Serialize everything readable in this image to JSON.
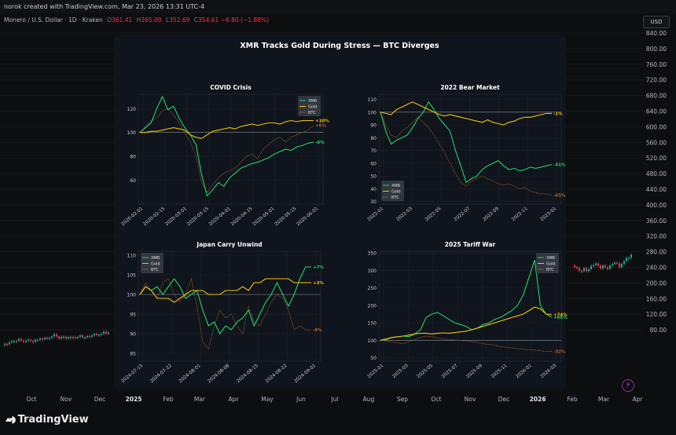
{
  "header": {
    "title": "norok created with TradingView.com, Mar 23, 2026 13:31 UTC-4",
    "symbol": "Monero / U.S. Dollar · 1D · Kraken",
    "ohlc": [
      {
        "label": "O",
        "value": "361.41"
      },
      {
        "label": "H",
        "value": "365.00"
      },
      {
        "label": "L",
        "value": "352.69"
      },
      {
        "label": "C",
        "value": "354.61"
      }
    ],
    "change": "−6.80 (−1.88%)",
    "currency": "USD"
  },
  "colors": {
    "background": "#0d0e10",
    "panel": "#111620",
    "xmr": "#22d36b",
    "gold": "#f5c400",
    "btc": "#b8652a",
    "candle_up": "#26a69a",
    "candle_down": "#f23645"
  },
  "price_axis": {
    "labels": [
      "840.00",
      "800.00",
      "760.00",
      "720.00",
      "680.00",
      "640.00",
      "600.00",
      "560.00",
      "520.00",
      "480.00",
      "440.00",
      "400.00",
      "360.00",
      "320.00",
      "280.00",
      "240.00",
      "200.00",
      "160.00",
      "120.00",
      "80.00"
    ]
  },
  "time_axis": {
    "labels": [
      "Oct",
      "Nov",
      "Dec",
      "2025",
      "Feb",
      "Mar",
      "Apr",
      "May",
      "Jun",
      "Jul",
      "Aug",
      "Sep",
      "Oct",
      "Nov",
      "Dec",
      "2026",
      "Feb",
      "Mar",
      "Apr"
    ]
  },
  "figure": {
    "title": "XMR Tracks Gold During Stress — BTC Diverges"
  },
  "chart_data": [
    {
      "type": "line",
      "title": "COVID Crisis",
      "x_ticks": [
        "2020-02-01",
        "2020-02-15",
        "2020-03-01",
        "2020-03-15",
        "2020-04-01",
        "2020-04-15",
        "2020-05-01",
        "2020-05-15",
        "2020-06-01"
      ],
      "y_ticks": [
        "60",
        "80",
        "100",
        "120"
      ],
      "ylim": [
        40,
        132
      ],
      "reference_line": 100,
      "legend": [
        "XMR",
        "Gold",
        "BTC"
      ],
      "legend_position": "top-right",
      "series": [
        {
          "name": "XMR",
          "values": [
            100,
            104,
            108,
            120,
            130,
            119,
            122,
            112,
            104,
            98,
            90,
            65,
            47,
            52,
            58,
            55,
            62,
            66,
            70,
            72,
            74,
            75,
            77,
            79,
            82,
            84,
            86,
            85,
            88,
            89,
            91,
            92
          ],
          "end_label": "-8%"
        },
        {
          "name": "Gold",
          "values": [
            100,
            100,
            101,
            101,
            102,
            103,
            104,
            103,
            102,
            98,
            96,
            95,
            98,
            101,
            102,
            103,
            104,
            103,
            105,
            106,
            107,
            106,
            107,
            108,
            108,
            107,
            109,
            110,
            109,
            110,
            110,
            110
          ],
          "end_label": "+10%"
        },
        {
          "name": "BTC",
          "values": [
            100,
            105,
            110,
            112,
            118,
            120,
            115,
            108,
            100,
            92,
            80,
            58,
            50,
            56,
            62,
            66,
            68,
            70,
            75,
            80,
            82,
            78,
            86,
            90,
            94,
            96,
            92,
            96,
            98,
            100,
            102,
            106
          ],
          "end_label": "+6%"
        }
      ]
    },
    {
      "type": "line",
      "title": "2022 Bear Market",
      "x_ticks": [
        "2022-01",
        "2022-03",
        "2022-05",
        "2022-07",
        "2022-09",
        "2022-11",
        "2023-01"
      ],
      "y_ticks": [
        "30",
        "40",
        "50",
        "60",
        "70",
        "80",
        "90",
        "100",
        "110"
      ],
      "ylim": [
        28,
        114
      ],
      "reference_line": 100,
      "legend": [
        "XMR",
        "Gold",
        "BTC"
      ],
      "legend_position": "lower-left",
      "series": [
        {
          "name": "XMR",
          "values": [
            100,
            85,
            75,
            78,
            80,
            82,
            88,
            95,
            100,
            108,
            102,
            95,
            90,
            85,
            70,
            58,
            45,
            48,
            50,
            55,
            58,
            60,
            62,
            58,
            55,
            56,
            54,
            55,
            57,
            56,
            57,
            58,
            59
          ],
          "end_label": "-41%"
        },
        {
          "name": "Gold",
          "values": [
            100,
            99,
            98,
            102,
            104,
            106,
            108,
            106,
            104,
            102,
            100,
            98,
            97,
            98,
            97,
            96,
            95,
            94,
            93,
            92,
            94,
            92,
            91,
            90,
            92,
            93,
            95,
            96,
            96,
            97,
            98,
            99,
            99
          ],
          "end_label": "-1%"
        },
        {
          "name": "BTC",
          "values": [
            100,
            90,
            82,
            80,
            85,
            88,
            92,
            96,
            92,
            88,
            82,
            75,
            68,
            60,
            52,
            45,
            42,
            46,
            48,
            50,
            48,
            46,
            44,
            43,
            44,
            42,
            40,
            41,
            38,
            37,
            36,
            36,
            35
          ],
          "end_label": "-65%"
        }
      ]
    },
    {
      "type": "line",
      "title": "Japan Carry Unwind",
      "x_ticks": [
        "2024-07-15",
        "2024-07-22",
        "2024-08-01",
        "2024-08-08",
        "2024-08-15",
        "2024-08-22",
        "2024-09-01"
      ],
      "y_ticks": [
        "85",
        "90",
        "95",
        "100",
        "105",
        "110"
      ],
      "ylim": [
        83,
        111
      ],
      "reference_line": 100,
      "legend": [
        "XMR",
        "Gold",
        "BTC"
      ],
      "legend_position": "top-left",
      "series": [
        {
          "name": "XMR",
          "values": [
            100,
            102,
            101,
            102,
            100,
            102,
            104,
            102,
            99,
            100,
            101,
            96,
            92,
            93,
            90,
            92,
            91,
            93,
            94,
            96,
            92,
            95,
            98,
            100,
            103,
            100,
            97,
            100,
            104,
            107,
            107
          ],
          "end_label": "+7%"
        },
        {
          "name": "Gold",
          "values": [
            100,
            102,
            101,
            99,
            99,
            99,
            98,
            99,
            100,
            101,
            101,
            101,
            100,
            100,
            100,
            101,
            101,
            101,
            102,
            101,
            103,
            103,
            104,
            104,
            104,
            104,
            104,
            103,
            103,
            103,
            103
          ],
          "end_label": "+3%"
        },
        {
          "name": "BTC",
          "values": [
            100,
            103,
            101,
            99,
            103,
            104,
            100,
            98,
            100,
            104,
            97,
            88,
            86,
            92,
            96,
            94,
            95,
            92,
            90,
            97,
            93,
            92,
            95,
            98,
            100,
            99,
            96,
            91,
            92,
            91,
            91
          ],
          "end_label": "-9%"
        }
      ]
    },
    {
      "type": "line",
      "title": "2025 Tariff War",
      "x_ticks": [
        "2025-01",
        "2025-03",
        "2025-05",
        "2025-07",
        "2025-09",
        "2025-11",
        "2026-01",
        "2026-03"
      ],
      "y_ticks": [
        "50",
        "100",
        "150",
        "200",
        "250",
        "300",
        "350"
      ],
      "ylim": [
        40,
        355
      ],
      "reference_line": 100,
      "legend": [
        "XMR",
        "Gold",
        "BTC"
      ],
      "legend_position": "top-right",
      "series": [
        {
          "name": "XMR",
          "values": [
            100,
            102,
            108,
            110,
            112,
            110,
            118,
            130,
            165,
            175,
            180,
            170,
            160,
            150,
            145,
            140,
            130,
            135,
            145,
            150,
            160,
            165,
            175,
            185,
            200,
            230,
            280,
            330,
            200,
            175,
            166
          ],
          "end_label": "+66%"
        },
        {
          "name": "Gold",
          "values": [
            100,
            104,
            108,
            110,
            112,
            115,
            118,
            120,
            120,
            118,
            120,
            121,
            120,
            122,
            124,
            126,
            130,
            135,
            140,
            145,
            150,
            155,
            160,
            165,
            170,
            175,
            185,
            195,
            190,
            175,
            174
          ],
          "end_label": "+74%"
        },
        {
          "name": "BTC",
          "values": [
            100,
            98,
            95,
            92,
            90,
            96,
            102,
            108,
            112,
            110,
            106,
            104,
            102,
            101,
            100,
            98,
            96,
            94,
            90,
            88,
            86,
            82,
            80,
            78,
            76,
            74,
            73,
            72,
            70,
            68,
            68
          ],
          "end_label": "-32%"
        }
      ]
    }
  ]
}
